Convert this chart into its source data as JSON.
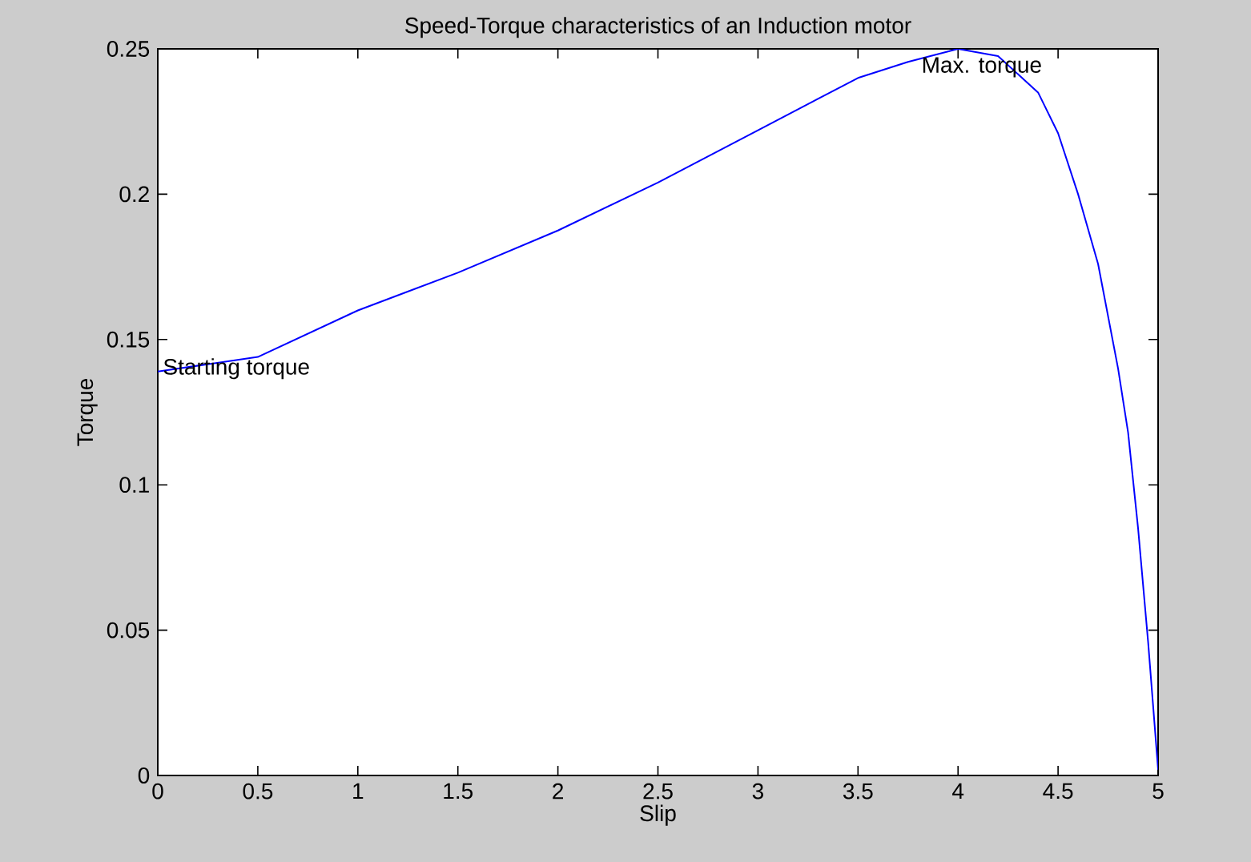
{
  "chart_data": {
    "type": "line",
    "title": "Speed-Torque characteristics of an Induction motor",
    "xlabel": "Slip",
    "ylabel": "Torque",
    "x": [
      0,
      0.5,
      1,
      1.5,
      2,
      2.5,
      3,
      3.5,
      3.75,
      4,
      4.2,
      4.4,
      4.5,
      4.6,
      4.7,
      4.8,
      4.85,
      4.9,
      4.95,
      5
    ],
    "series": [
      {
        "color": "#0000ff",
        "values": [
          0.139,
          0.144,
          0.16,
          0.173,
          0.1875,
          0.204,
          0.222,
          0.24,
          0.2455,
          0.25,
          0.2475,
          0.235,
          0.221,
          0.2,
          0.176,
          0.14,
          0.118,
          0.085,
          0.046,
          0.002
        ]
      }
    ],
    "xlim": [
      0,
      5
    ],
    "ylim": [
      0,
      0.25
    ],
    "xticks": [
      0,
      0.5,
      1,
      1.5,
      2,
      2.5,
      3,
      3.5,
      4,
      4.5,
      5
    ],
    "yticks": [
      0,
      0.05,
      0.1,
      0.15,
      0.2,
      0.25
    ],
    "marker": "none",
    "line_style": "solid",
    "annotations": [
      {
        "text": "Starting torque",
        "x": 0,
        "y": 0.139
      },
      {
        "text": "Max. torque",
        "x": 4,
        "y": 0.25
      }
    ]
  }
}
